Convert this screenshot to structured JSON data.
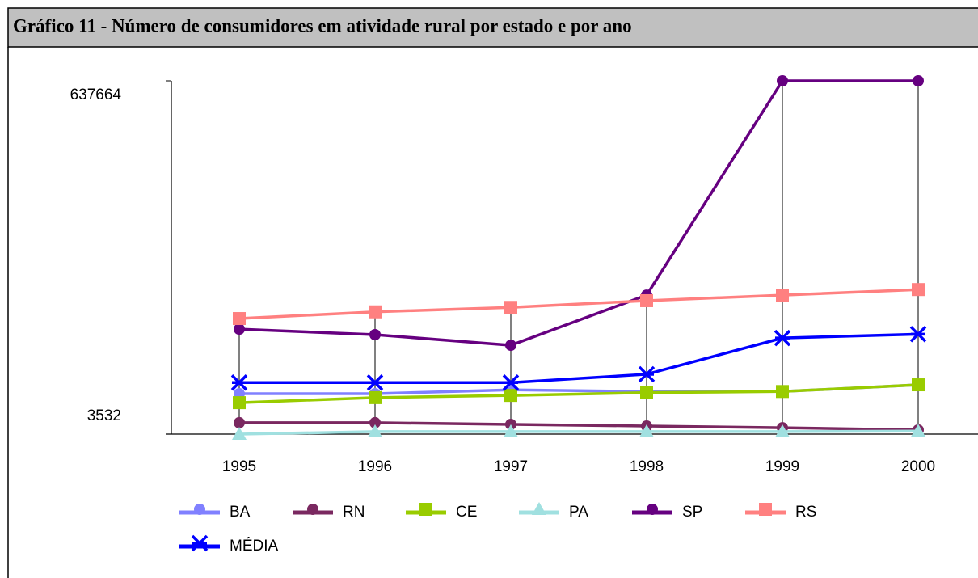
{
  "chart_data": {
    "type": "line",
    "title": "Gráfico 11 - Número de consumidores em atividade rural  por estado e por ano",
    "categories": [
      "1995",
      "1996",
      "1997",
      "1998",
      "1999",
      "2000"
    ],
    "ylim": [
      3532,
      637664
    ],
    "yticks": [
      3532,
      637664
    ],
    "legend": "bottom",
    "drop_lines": true,
    "series": [
      {
        "name": "BA",
        "color": "#8080ff",
        "marker": "circle",
        "values": [
          76000,
          76000,
          83000,
          80000,
          80000,
          92000
        ]
      },
      {
        "name": "RN",
        "color": "#7a2860",
        "marker": "circle",
        "values": [
          24000,
          24000,
          21000,
          18000,
          15000,
          11000
        ]
      },
      {
        "name": "CE",
        "color": "#99cc00",
        "marker": "square",
        "values": [
          60000,
          69000,
          73000,
          78000,
          80000,
          92000
        ]
      },
      {
        "name": "PA",
        "color": "#a0e0e0",
        "marker": "triangle",
        "values": [
          3532,
          8000,
          8000,
          8000,
          8000,
          9000
        ]
      },
      {
        "name": "SP",
        "color": "#660080",
        "marker": "circle",
        "values": [
          192000,
          182000,
          163000,
          253000,
          637664,
          637664
        ]
      },
      {
        "name": "RS",
        "color": "#ff8080",
        "marker": "square",
        "values": [
          211000,
          223000,
          231000,
          243000,
          253000,
          263000
        ]
      },
      {
        "name": "MÉDIA",
        "color": "#0000ff",
        "marker": "star",
        "values": [
          96000,
          96000,
          96000,
          111000,
          176000,
          183000
        ]
      }
    ]
  }
}
